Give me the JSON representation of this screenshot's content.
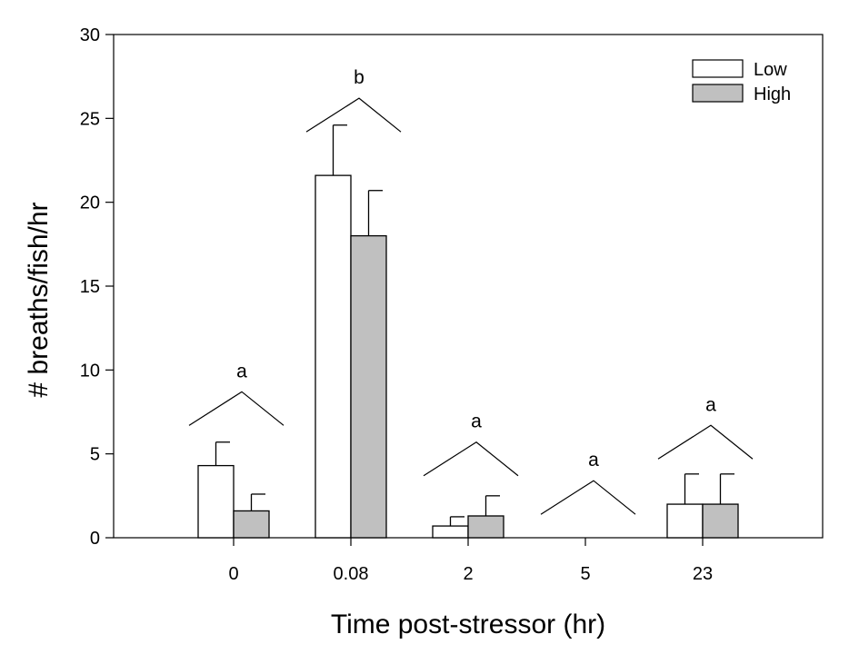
{
  "chart_data": {
    "type": "bar",
    "title": "",
    "xlabel": "Time post-stressor (hr)",
    "ylabel": "# breaths/fish/hr",
    "ylim": [
      0,
      30
    ],
    "yticks": [
      "0",
      "5",
      "10",
      "15",
      "20",
      "25",
      "30"
    ],
    "categories": [
      "0",
      "0.08",
      "2",
      "5",
      "23"
    ],
    "series": [
      {
        "name": "Low",
        "color": "#ffffff",
        "values": [
          4.3,
          21.6,
          0.7,
          0,
          2.0
        ],
        "errors": [
          1.4,
          3.0,
          0.55,
          0,
          1.8
        ]
      },
      {
        "name": "High",
        "color": "#c0c0c0",
        "values": [
          1.6,
          18.0,
          1.3,
          0,
          2.0
        ],
        "errors": [
          1.0,
          2.7,
          1.2,
          0,
          1.8
        ]
      }
    ],
    "significance": [
      {
        "label": "a",
        "peak": 8.7
      },
      {
        "label": "b",
        "peak": 26.2
      },
      {
        "label": "a",
        "peak": 5.7
      },
      {
        "label": "a",
        "peak": 3.4
      },
      {
        "label": "a",
        "peak": 6.7
      }
    ],
    "legend": "top-right",
    "grid": false
  }
}
